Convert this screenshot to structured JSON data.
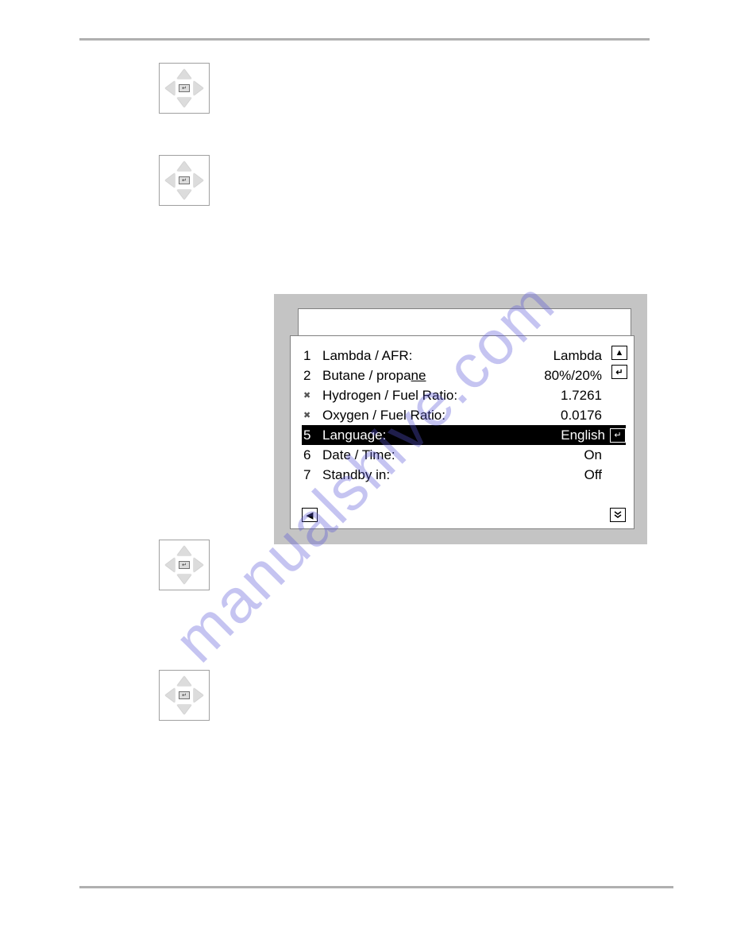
{
  "watermark": "manualshive.com",
  "lcd": {
    "rows": [
      {
        "num": "1",
        "label": "Lambda / AFR:",
        "value": "Lambda",
        "bullet": false,
        "selected": false
      },
      {
        "num": "2",
        "label_html": "Butane / propane",
        "value": "80%/20%",
        "bullet": false,
        "selected": false,
        "underline_tail": true
      },
      {
        "num": "",
        "label": "Hydrogen / Fuel Ratio:",
        "value": "1.7261",
        "bullet": true,
        "selected": false
      },
      {
        "num": "",
        "label": "Oxygen / Fuel Ratio:",
        "value": "0.0176",
        "bullet": true,
        "selected": false
      },
      {
        "num": "5",
        "label": "Language:",
        "value": "English",
        "bullet": false,
        "selected": true
      },
      {
        "num": "6",
        "label": "Date / Time:",
        "value": "On",
        "bullet": false,
        "selected": false
      },
      {
        "num": "7",
        "label": "Standby in:",
        "value": "Off",
        "bullet": false,
        "selected": false
      }
    ],
    "side_up": "▲",
    "side_enter": "↵",
    "bottom_left": "◀",
    "bottom_right": "�季"
  },
  "colors": {
    "frame": "#c4c4c4",
    "rule": "#b0b0b0",
    "watermark": "rgba(88,86,214,0.35)"
  }
}
